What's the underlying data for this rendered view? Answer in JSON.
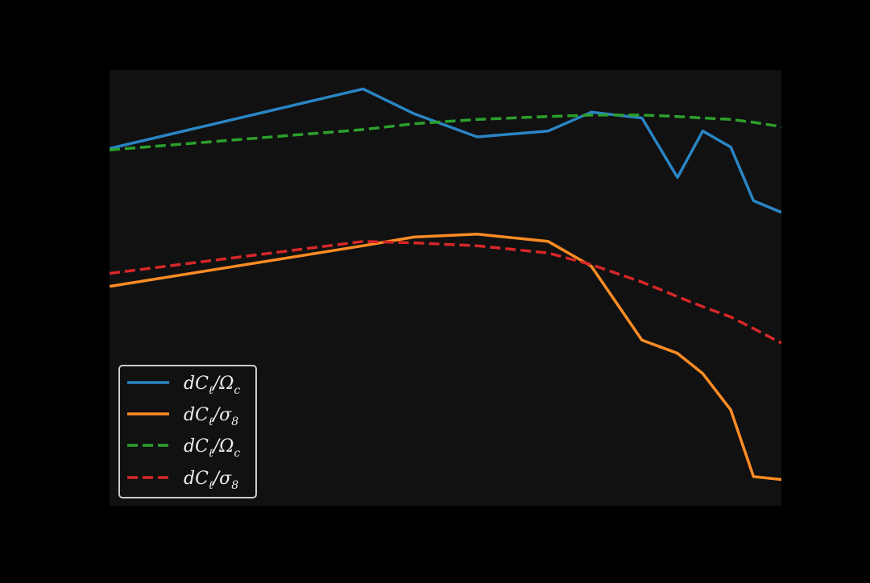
{
  "chart_data": {
    "type": "line",
    "title": "",
    "xlabel": "",
    "ylabel": "",
    "xlim": [
      0,
      26.5
    ],
    "ylim": [
      -1.15,
      0.35
    ],
    "grid": false,
    "legend_position": "bottom-left",
    "x": [
      0,
      10,
      12,
      14.5,
      17.3,
      19,
      21,
      22.4,
      23.4,
      24.5,
      25.4,
      26.5
    ],
    "series": [
      {
        "name": "dC_ℓ/Ω_c",
        "color": "#2a85c4",
        "style": "solid",
        "values": [
          0.08,
          0.285,
          0.2,
          0.12,
          0.14,
          0.205,
          0.185,
          -0.02,
          0.14,
          0.085,
          -0.1,
          -0.14
        ]
      },
      {
        "name": "dC_ℓ/σ_8",
        "color": "#ff8c24",
        "style": "solid",
        "values": [
          -0.395,
          -0.255,
          -0.225,
          -0.215,
          -0.24,
          -0.325,
          -0.58,
          -0.625,
          -0.695,
          -0.82,
          -1.05,
          -1.06
        ]
      },
      {
        "name": "dC_ℓ/Ω_c",
        "color": "#2ca02c",
        "style": "dashed",
        "values": [
          0.075,
          0.145,
          0.165,
          0.18,
          0.19,
          0.195,
          0.195,
          0.19,
          0.185,
          0.18,
          0.17,
          0.155
        ]
      },
      {
        "name": "dC_ℓ/σ_8",
        "color": "#d62728",
        "style": "dashed",
        "values": [
          -0.35,
          -0.24,
          -0.245,
          -0.255,
          -0.28,
          -0.32,
          -0.38,
          -0.43,
          -0.465,
          -0.5,
          -0.54,
          -0.59
        ]
      }
    ]
  },
  "legend": {
    "entries": [
      {
        "base": "dC",
        "sub1": "ℓ",
        "mid": "/Ω",
        "sub2": "c"
      },
      {
        "base": "dC",
        "sub1": "ℓ",
        "mid": "/σ",
        "sub2": "8"
      },
      {
        "base": "dC",
        "sub1": "ℓ",
        "mid": "/Ω",
        "sub2": "c"
      },
      {
        "base": "dC",
        "sub1": "ℓ",
        "mid": "/σ",
        "sub2": "8"
      }
    ]
  },
  "colors": {
    "figure_background": "#000000",
    "axes_background": "#111111",
    "legend_border": "#cccccc",
    "text": "#eeeeee"
  }
}
